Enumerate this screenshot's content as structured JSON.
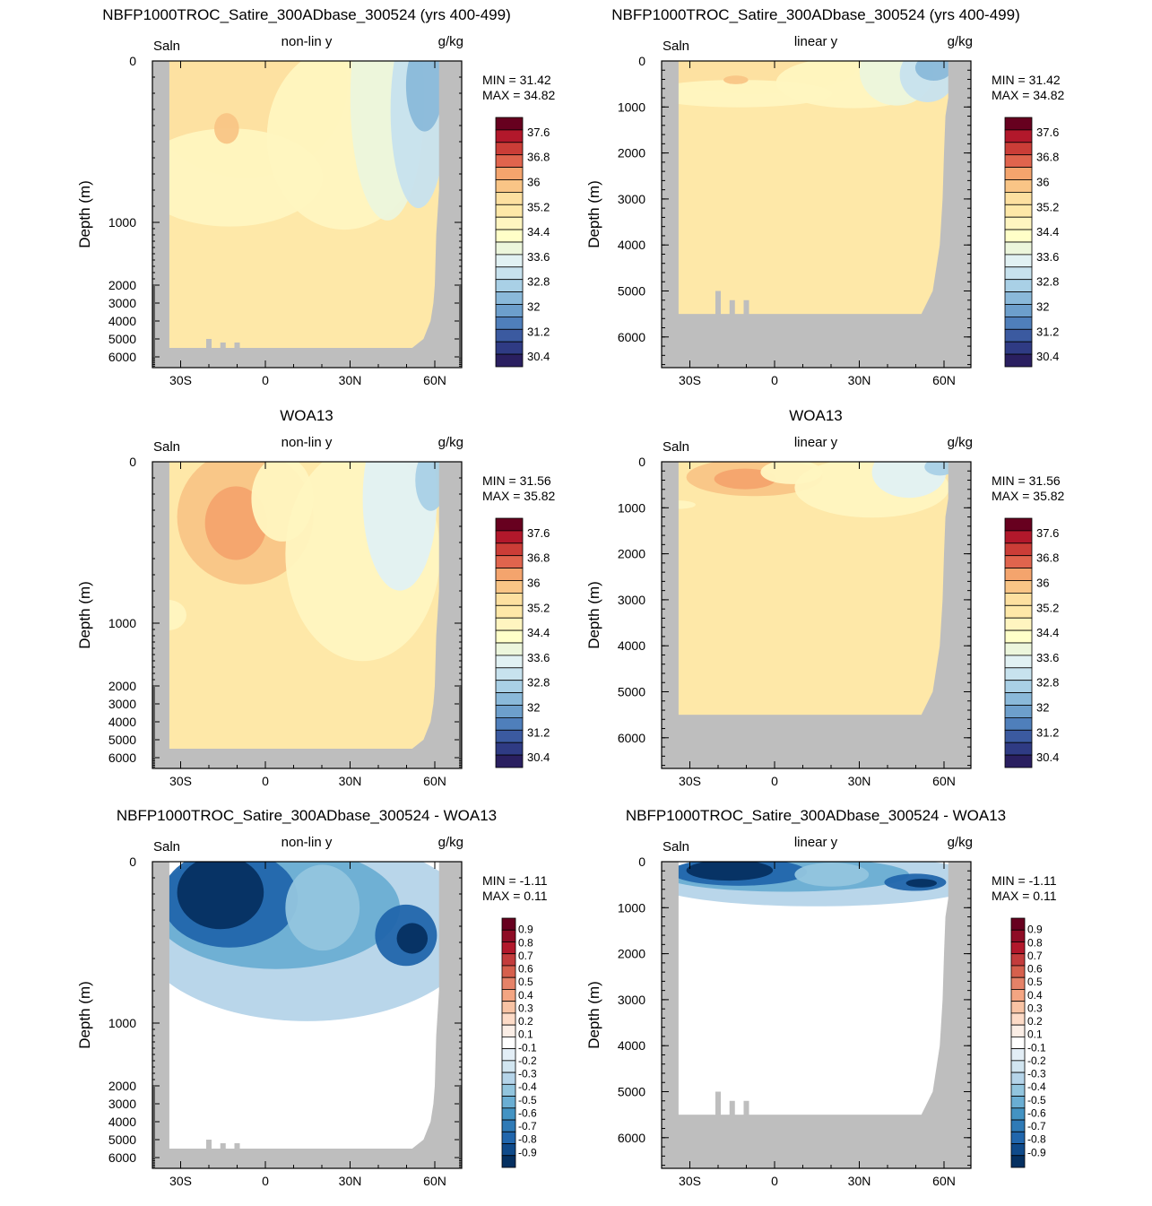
{
  "chart_data": [
    {
      "type": "heatmap",
      "title": "NBFP1000TROC_Satire_300ADbase_300524 (yrs 400-499)",
      "left_label": "Saln",
      "center_label": "non-lin y",
      "right_label": "g/kg",
      "ylabel": "Depth (m)",
      "xticks": [
        "30S",
        "0",
        "30N",
        "60N"
      ],
      "yticks": [
        "0",
        "1000",
        "2000",
        "3000",
        "4000",
        "5000",
        "6000"
      ],
      "yscale": "non-linear",
      "min_label": "MIN =  31.42",
      "max_label": "MAX =  34.82",
      "colorbar_ticks": [
        "37.6",
        "36.8",
        "36",
        "35.2",
        "34.4",
        "33.6",
        "32.8",
        "32",
        "31.2",
        "30.4"
      ],
      "colorbar_colors": [
        "#67001f",
        "#b2182b",
        "#cb3d37",
        "#e0644d",
        "#f4a46d",
        "#f9c586",
        "#fde0a0",
        "#fee8a8",
        "#fff5c0",
        "#ffffc8",
        "#ecf6dc",
        "#e1f1f3",
        "#c7e2ee",
        "#a9d0e6",
        "#8ab9da",
        "#6d9fcc",
        "#4f7fbb",
        "#3b5aa0",
        "#2f3b84",
        "#2a1f60"
      ]
    },
    {
      "type": "heatmap",
      "title": "NBFP1000TROC_Satire_300ADbase_300524 (yrs 400-499)",
      "left_label": "Saln",
      "center_label": "linear y",
      "right_label": "g/kg",
      "ylabel": "Depth (m)",
      "xticks": [
        "30S",
        "0",
        "30N",
        "60N"
      ],
      "yticks": [
        "0",
        "1000",
        "2000",
        "3000",
        "4000",
        "5000",
        "6000"
      ],
      "yscale": "linear",
      "min_label": "MIN =  31.42",
      "max_label": "MAX =  34.82",
      "colorbar_ticks": [
        "37.6",
        "36.8",
        "36",
        "35.2",
        "34.4",
        "33.6",
        "32.8",
        "32",
        "31.2",
        "30.4"
      ],
      "colorbar_colors": [
        "#67001f",
        "#b2182b",
        "#cb3d37",
        "#e0644d",
        "#f4a46d",
        "#f9c586",
        "#fde0a0",
        "#fee8a8",
        "#fff5c0",
        "#ffffc8",
        "#ecf6dc",
        "#e1f1f3",
        "#c7e2ee",
        "#a9d0e6",
        "#8ab9da",
        "#6d9fcc",
        "#4f7fbb",
        "#3b5aa0",
        "#2f3b84",
        "#2a1f60"
      ]
    },
    {
      "type": "heatmap",
      "title": "WOA13",
      "left_label": "Saln",
      "center_label": "non-lin y",
      "right_label": "g/kg",
      "ylabel": "Depth (m)",
      "xticks": [
        "30S",
        "0",
        "30N",
        "60N"
      ],
      "yticks": [
        "0",
        "1000",
        "2000",
        "3000",
        "4000",
        "5000",
        "6000"
      ],
      "yscale": "non-linear",
      "min_label": "MIN =  31.56",
      "max_label": "MAX =  35.82",
      "colorbar_ticks": [
        "37.6",
        "36.8",
        "36",
        "35.2",
        "34.4",
        "33.6",
        "32.8",
        "32",
        "31.2",
        "30.4"
      ],
      "colorbar_colors": [
        "#67001f",
        "#b2182b",
        "#cb3d37",
        "#e0644d",
        "#f4a46d",
        "#f9c586",
        "#fde0a0",
        "#fee8a8",
        "#fff5c0",
        "#ffffc8",
        "#ecf6dc",
        "#e1f1f3",
        "#c7e2ee",
        "#a9d0e6",
        "#8ab9da",
        "#6d9fcc",
        "#4f7fbb",
        "#3b5aa0",
        "#2f3b84",
        "#2a1f60"
      ]
    },
    {
      "type": "heatmap",
      "title": "WOA13",
      "left_label": "Saln",
      "center_label": "linear y",
      "right_label": "g/kg",
      "ylabel": "Depth (m)",
      "xticks": [
        "30S",
        "0",
        "30N",
        "60N"
      ],
      "yticks": [
        "0",
        "1000",
        "2000",
        "3000",
        "4000",
        "5000",
        "6000"
      ],
      "yscale": "linear",
      "min_label": "MIN =  31.56",
      "max_label": "MAX =  35.82",
      "colorbar_ticks": [
        "37.6",
        "36.8",
        "36",
        "35.2",
        "34.4",
        "33.6",
        "32.8",
        "32",
        "31.2",
        "30.4"
      ],
      "colorbar_colors": [
        "#67001f",
        "#b2182b",
        "#cb3d37",
        "#e0644d",
        "#f4a46d",
        "#f9c586",
        "#fde0a0",
        "#fee8a8",
        "#fff5c0",
        "#ffffc8",
        "#ecf6dc",
        "#e1f1f3",
        "#c7e2ee",
        "#a9d0e6",
        "#8ab9da",
        "#6d9fcc",
        "#4f7fbb",
        "#3b5aa0",
        "#2f3b84",
        "#2a1f60"
      ]
    },
    {
      "type": "heatmap",
      "title": "NBFP1000TROC_Satire_300ADbase_300524 - WOA13",
      "left_label": "Saln",
      "center_label": "non-lin y",
      "right_label": "g/kg",
      "ylabel": "Depth (m)",
      "xticks": [
        "30S",
        "0",
        "30N",
        "60N"
      ],
      "yticks": [
        "0",
        "1000",
        "2000",
        "3000",
        "4000",
        "5000",
        "6000"
      ],
      "yscale": "non-linear",
      "min_label": "MIN =  -1.11",
      "max_label": "MAX =   0.11",
      "colorbar_ticks": [
        "0.9",
        "0.8",
        "0.7",
        "0.6",
        "0.5",
        "0.4",
        "0.3",
        "0.2",
        "0.1",
        "-0.1",
        "-0.2",
        "-0.3",
        "-0.4",
        "-0.5",
        "-0.6",
        "-0.7",
        "-0.8",
        "-0.9"
      ],
      "colorbar_colors": [
        "#67001f",
        "#8e0c25",
        "#b2182b",
        "#c33c3c",
        "#d6604d",
        "#e58268",
        "#f4a582",
        "#f8c3a4",
        "#fddbc7",
        "#fbeee6",
        "#ffffff",
        "#e3eef6",
        "#d1e5f0",
        "#b5d4e9",
        "#92c5de",
        "#6aaed3",
        "#4393c3",
        "#2f7ab6",
        "#2166ac",
        "#0f4a8a",
        "#053061"
      ]
    },
    {
      "type": "heatmap",
      "title": "NBFP1000TROC_Satire_300ADbase_300524 - WOA13",
      "left_label": "Saln",
      "center_label": "linear y",
      "right_label": "g/kg",
      "ylabel": "Depth (m)",
      "xticks": [
        "30S",
        "0",
        "30N",
        "60N"
      ],
      "yticks": [
        "0",
        "1000",
        "2000",
        "3000",
        "4000",
        "5000",
        "6000"
      ],
      "yscale": "linear",
      "min_label": "MIN =  -1.11",
      "max_label": "MAX =   0.11",
      "colorbar_ticks": [
        "0.9",
        "0.8",
        "0.7",
        "0.6",
        "0.5",
        "0.4",
        "0.3",
        "0.2",
        "0.1",
        "-0.1",
        "-0.2",
        "-0.3",
        "-0.4",
        "-0.5",
        "-0.6",
        "-0.7",
        "-0.8",
        "-0.9"
      ],
      "colorbar_colors": [
        "#67001f",
        "#8e0c25",
        "#b2182b",
        "#c33c3c",
        "#d6604d",
        "#e58268",
        "#f4a582",
        "#f8c3a4",
        "#fddbc7",
        "#fbeee6",
        "#ffffff",
        "#e3eef6",
        "#d1e5f0",
        "#b5d4e9",
        "#92c5de",
        "#6aaed3",
        "#4393c3",
        "#2f7ab6",
        "#2166ac",
        "#0f4a8a",
        "#053061"
      ]
    }
  ]
}
